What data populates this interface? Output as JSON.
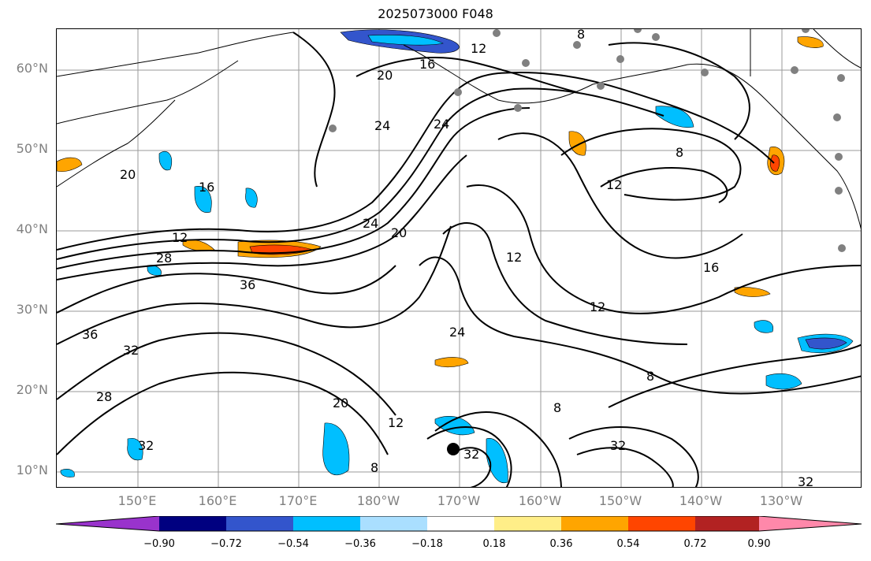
{
  "title": "2025073000 F048",
  "lat_labels": [
    "60°N",
    "50°N",
    "40°N",
    "30°N",
    "20°N",
    "10°N"
  ],
  "lon_labels": [
    "150°E",
    "160°E",
    "170°E",
    "180°W",
    "170°W",
    "160°W",
    "150°W",
    "140°W",
    "130°W"
  ],
  "contour_labels": [
    "8",
    "12",
    "16",
    "20",
    "24",
    "28",
    "32",
    "36"
  ],
  "colorbar": {
    "ticks": [
      "−0.90",
      "−0.72",
      "−0.54",
      "−0.36",
      "−0.18",
      "0.18",
      "0.36",
      "0.54",
      "0.72",
      "0.90"
    ],
    "colors": [
      "#9933cc",
      "#000080",
      "#3355cc",
      "#00bfff",
      "#aadfff",
      "#ffffff",
      "#ffee88",
      "#ffa500",
      "#ff4500",
      "#b22222",
      "#ff88aa"
    ]
  }
}
